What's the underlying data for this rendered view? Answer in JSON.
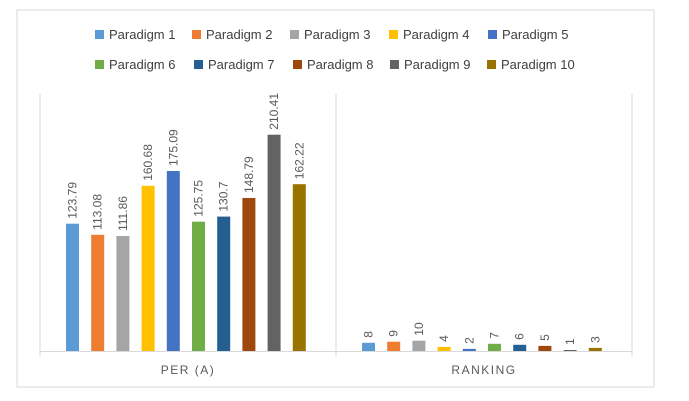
{
  "chart_data": {
    "type": "bar",
    "categories": [
      "PER (A)",
      "RANKING"
    ],
    "series": [
      {
        "name": "Paradigm 1",
        "color": "#5B9BD5",
        "values": [
          123.79,
          8
        ]
      },
      {
        "name": "Paradigm 2",
        "color": "#ED7D31",
        "values": [
          113.08,
          9
        ]
      },
      {
        "name": "Paradigm 3",
        "color": "#A5A5A5",
        "values": [
          111.86,
          10
        ]
      },
      {
        "name": "Paradigm 4",
        "color": "#FFC000",
        "values": [
          160.68,
          4
        ]
      },
      {
        "name": "Paradigm 5",
        "color": "#4472C4",
        "values": [
          175.09,
          2
        ]
      },
      {
        "name": "Paradigm 6",
        "color": "#70AD47",
        "values": [
          125.75,
          7
        ]
      },
      {
        "name": "Paradigm 7",
        "color": "#255E91",
        "values": [
          130.7,
          6
        ]
      },
      {
        "name": "Paradigm 8",
        "color": "#9E480E",
        "values": [
          148.79,
          5
        ]
      },
      {
        "name": "Paradigm 9",
        "color": "#636363",
        "values": [
          210.41,
          1
        ]
      },
      {
        "name": "Paradigm 10",
        "color": "#997300",
        "values": [
          162.22,
          3
        ]
      }
    ],
    "ylim": [
      0,
      250
    ],
    "grid": false,
    "legend": "top",
    "data_labels": true
  }
}
